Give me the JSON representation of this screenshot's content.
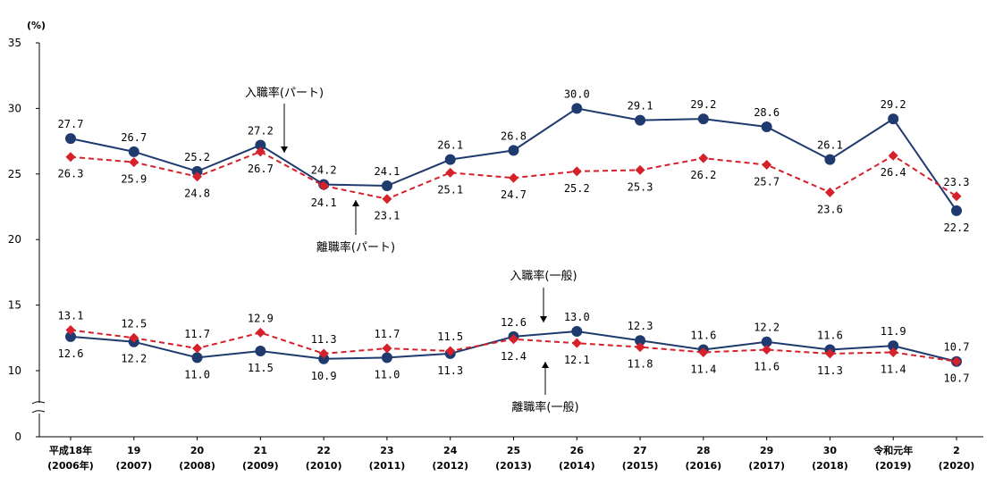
{
  "chart_data": {
    "type": "line",
    "unit_label": "(%)",
    "y_ticks": [
      "0",
      "10",
      "15",
      "20",
      "25",
      "30",
      "35"
    ],
    "categories": [
      [
        "平成18年",
        "(2006年)"
      ],
      [
        "19",
        "(2007)"
      ],
      [
        "20",
        "(2008)"
      ],
      [
        "21",
        "(2009)"
      ],
      [
        "22",
        "(2010)"
      ],
      [
        "23",
        "(2011)"
      ],
      [
        "24",
        "(2012)"
      ],
      [
        "25",
        "(2013)"
      ],
      [
        "26",
        "(2014)"
      ],
      [
        "27",
        "(2015)"
      ],
      [
        "28",
        "(2016)"
      ],
      [
        "29",
        "(2017)"
      ],
      [
        "30",
        "(2018)"
      ],
      [
        "令和元年",
        "(2019)"
      ],
      [
        "2",
        "(2020)"
      ]
    ],
    "series": [
      {
        "name": "入職率(パート)",
        "style": "solid-circle",
        "color": "#1f3a6e",
        "values": [
          27.7,
          26.7,
          25.2,
          27.2,
          24.2,
          24.1,
          26.1,
          26.8,
          30.0,
          29.1,
          29.2,
          28.6,
          26.1,
          29.2,
          22.2
        ]
      },
      {
        "name": "離職率(パート)",
        "style": "dashed-diamond",
        "color": "#d6202a",
        "values": [
          26.3,
          25.9,
          24.8,
          26.7,
          24.1,
          23.1,
          25.1,
          24.7,
          25.2,
          25.3,
          26.2,
          25.7,
          23.6,
          26.4,
          23.3
        ]
      },
      {
        "name": "入職率(一般)",
        "style": "solid-circle",
        "color": "#1f3a6e",
        "values": [
          12.6,
          12.2,
          11.0,
          11.5,
          10.9,
          11.0,
          11.3,
          12.6,
          13.0,
          12.3,
          11.6,
          12.2,
          11.6,
          11.9,
          10.7
        ]
      },
      {
        "name": "離職率(一般)",
        "style": "dashed-diamond",
        "color": "#d6202a",
        "values": [
          13.1,
          12.5,
          11.7,
          12.9,
          11.3,
          11.7,
          11.5,
          12.4,
          12.1,
          11.8,
          11.4,
          11.6,
          11.3,
          11.4,
          10.7
        ]
      }
    ],
    "annotations": [
      "入職率(パート)",
      "離職率(パート)",
      "入職率(一般)",
      "離職率(一般)"
    ]
  }
}
